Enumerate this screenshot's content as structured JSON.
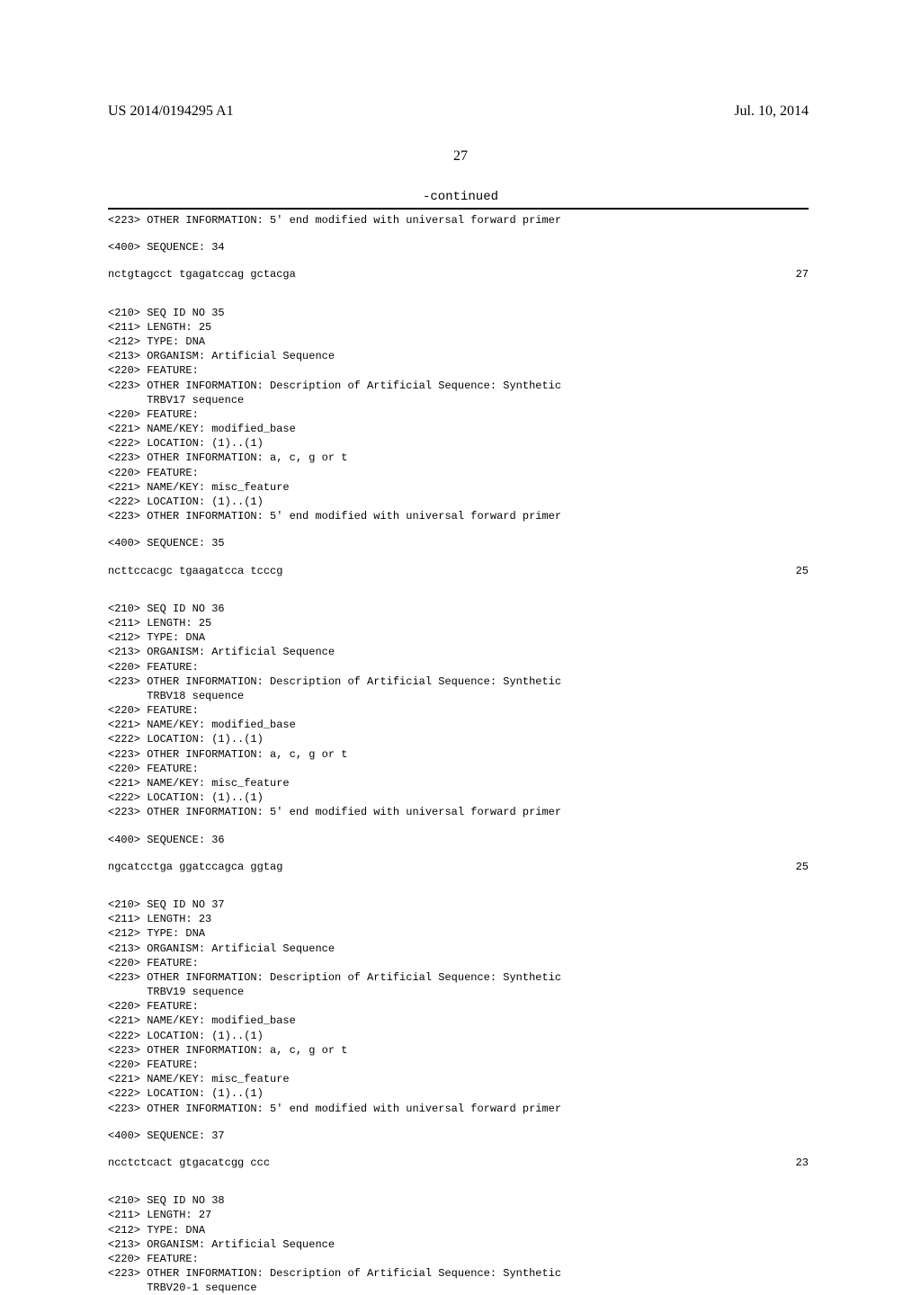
{
  "header": {
    "pub_number": "US 2014/0194295 A1",
    "pub_date": "Jul. 10, 2014"
  },
  "page_number": "27",
  "continued_label": "-continued",
  "blocks": [
    {
      "pre_lines": [
        "<223> OTHER INFORMATION: 5' end modified with universal forward primer"
      ],
      "seq_header": "<400> SEQUENCE: 34",
      "sequence": "nctgtagcct tgagatccag gctacga",
      "seq_len": "27"
    },
    {
      "pre_lines": [
        "<210> SEQ ID NO 35",
        "<211> LENGTH: 25",
        "<212> TYPE: DNA",
        "<213> ORGANISM: Artificial Sequence",
        "<220> FEATURE:",
        "<223> OTHER INFORMATION: Description of Artificial Sequence: Synthetic",
        "      TRBV17 sequence",
        "<220> FEATURE:",
        "<221> NAME/KEY: modified_base",
        "<222> LOCATION: (1)..(1)",
        "<223> OTHER INFORMATION: a, c, g or t",
        "<220> FEATURE:",
        "<221> NAME/KEY: misc_feature",
        "<222> LOCATION: (1)..(1)",
        "<223> OTHER INFORMATION: 5' end modified with universal forward primer"
      ],
      "seq_header": "<400> SEQUENCE: 35",
      "sequence": "ncttccacgc tgaagatcca tcccg",
      "seq_len": "25"
    },
    {
      "pre_lines": [
        "<210> SEQ ID NO 36",
        "<211> LENGTH: 25",
        "<212> TYPE: DNA",
        "<213> ORGANISM: Artificial Sequence",
        "<220> FEATURE:",
        "<223> OTHER INFORMATION: Description of Artificial Sequence: Synthetic",
        "      TRBV18 sequence",
        "<220> FEATURE:",
        "<221> NAME/KEY: modified_base",
        "<222> LOCATION: (1)..(1)",
        "<223> OTHER INFORMATION: a, c, g or t",
        "<220> FEATURE:",
        "<221> NAME/KEY: misc_feature",
        "<222> LOCATION: (1)..(1)",
        "<223> OTHER INFORMATION: 5' end modified with universal forward primer"
      ],
      "seq_header": "<400> SEQUENCE: 36",
      "sequence": "ngcatcctga ggatccagca ggtag",
      "seq_len": "25"
    },
    {
      "pre_lines": [
        "<210> SEQ ID NO 37",
        "<211> LENGTH: 23",
        "<212> TYPE: DNA",
        "<213> ORGANISM: Artificial Sequence",
        "<220> FEATURE:",
        "<223> OTHER INFORMATION: Description of Artificial Sequence: Synthetic",
        "      TRBV19 sequence",
        "<220> FEATURE:",
        "<221> NAME/KEY: modified_base",
        "<222> LOCATION: (1)..(1)",
        "<223> OTHER INFORMATION: a, c, g or t",
        "<220> FEATURE:",
        "<221> NAME/KEY: misc_feature",
        "<222> LOCATION: (1)..(1)",
        "<223> OTHER INFORMATION: 5' end modified with universal forward primer"
      ],
      "seq_header": "<400> SEQUENCE: 37",
      "sequence": "ncctctcact gtgacatcgg ccc",
      "seq_len": "23"
    },
    {
      "pre_lines": [
        "<210> SEQ ID NO 38",
        "<211> LENGTH: 27",
        "<212> TYPE: DNA",
        "<213> ORGANISM: Artificial Sequence",
        "<220> FEATURE:",
        "<223> OTHER INFORMATION: Description of Artificial Sequence: Synthetic",
        "      TRBV20-1 sequence"
      ],
      "seq_header": "",
      "sequence": "",
      "seq_len": ""
    }
  ]
}
